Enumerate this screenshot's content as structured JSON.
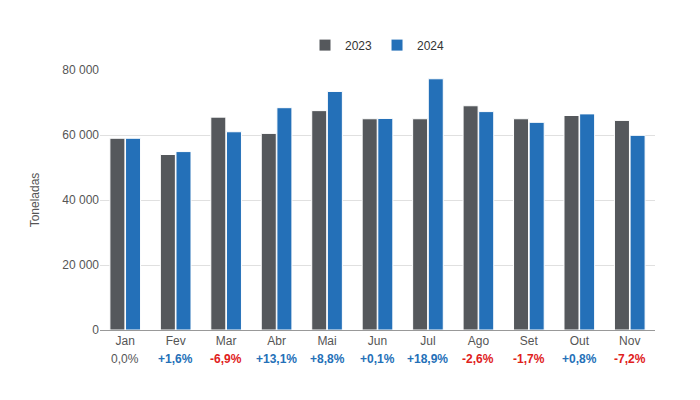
{
  "chart_data": {
    "type": "bar",
    "categories": [
      "Jan",
      "Fev",
      "Mar",
      "Abr",
      "Mai",
      "Jun",
      "Jul",
      "Ago",
      "Set",
      "Out",
      "Nov"
    ],
    "annotations": [
      "0,0%",
      "+1,6%",
      "-6,9%",
      "+13,1%",
      "+8,8%",
      "+0,1%",
      "+18,9%",
      "-2,6%",
      "-1,7%",
      "+0,8%",
      "-7,2%"
    ],
    "y_label": "Toneladas",
    "series": [
      {
        "name": "2023",
        "color": "#55585c",
        "values": [
          59000,
          54000,
          65500,
          60500,
          67500,
          65000,
          65000,
          69000,
          65000,
          66000,
          64500
        ]
      },
      {
        "name": "2024",
        "color": "#2470b8",
        "values": [
          59000,
          54900,
          61000,
          68400,
          73400,
          65100,
          77300,
          67200,
          63900,
          66500,
          59900
        ]
      }
    ],
    "ylim": [
      0,
      80000
    ],
    "yticks": [
      0,
      {
        "value": 20000,
        "label": "20 000"
      },
      {
        "value": 40000,
        "label": "40 000"
      },
      {
        "value": 60000,
        "label": "60 000"
      },
      {
        "value": 80000,
        "label": "80 000"
      }
    ],
    "grid": true,
    "legend": "top"
  }
}
